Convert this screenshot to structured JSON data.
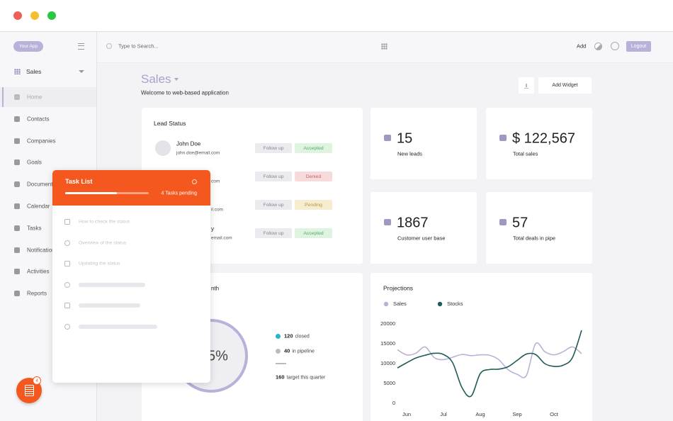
{
  "app": {
    "logo": "Your App",
    "section": "Sales"
  },
  "nav": [
    "Home",
    "Contacts",
    "Companies",
    "Goals",
    "Documents",
    "Calendar",
    "Tasks",
    "Notifications",
    "Activities",
    "Reports"
  ],
  "header": {
    "search": "Type to Search...",
    "add": "Add",
    "logout": "Logout"
  },
  "page": {
    "title": "Sales",
    "subtitle": "Welcome to web-based application",
    "add_widget": "Add Widget"
  },
  "lead_status": {
    "title": "Lead Status",
    "leads": [
      {
        "name": "John Doe",
        "email": "john.doe@email.com",
        "action": "Follow up",
        "status": "Accepted",
        "status_color": "#5aa86a",
        "status_bg": "#dff3e1"
      },
      {
        "email": "com",
        "action": "Follow up",
        "status": "Denied",
        "status_color": "#c76666",
        "status_bg": "#f7dadb"
      },
      {
        "email": "il.com",
        "action": "Follow up",
        "status": "Pending",
        "status_color": "#b9963c",
        "status_bg": "#f6ecd0"
      },
      {
        "name": "y",
        "email": "email.com",
        "action": "Follow up",
        "status": "Accepted",
        "status_color": "#5aa86a",
        "status_bg": "#dff3e1"
      }
    ]
  },
  "stats": [
    {
      "value": "15",
      "label": "New leads"
    },
    {
      "value": "$ 122,567",
      "label": "Total sales"
    },
    {
      "value": "1867",
      "label": "Customer user base"
    },
    {
      "value": "57",
      "label": "Total deals in pipe"
    }
  ],
  "target": {
    "title_fragment": "nth",
    "percent_fragment": "5%",
    "legend": [
      {
        "value": 120,
        "label": "closed",
        "color": "#25b5c7"
      },
      {
        "value": 40,
        "label": "in pipeline",
        "color": "#bbbbbb"
      },
      {
        "value": 160,
        "label": "target this quarter"
      }
    ]
  },
  "task_list": {
    "title": "Task List",
    "pending": "4 Tasks pending",
    "progress": 62,
    "badge": 4,
    "tasks": [
      "How to check the status",
      "Overview of the status",
      "Updating the status"
    ]
  },
  "chart_data": {
    "type": "line",
    "title": "Projections",
    "categories": [
      null,
      "Jun",
      null,
      null,
      null,
      "Jul",
      null,
      null,
      null,
      "Aug",
      null,
      null,
      null,
      "Sep",
      null,
      null,
      null,
      "Oct",
      null,
      null,
      null
    ],
    "series": [
      {
        "name": "Sales",
        "color": "#b9b2d6",
        "values": [
          13500,
          12200,
          12600,
          14200,
          11500,
          11000,
          11600,
          12300,
          12000,
          12200,
          12100,
          11000,
          8500,
          7300,
          7000,
          15000,
          13000,
          12200,
          13000,
          14200,
          12500
        ]
      },
      {
        "name": "Stocks",
        "color": "#1f5c55",
        "values": [
          8900,
          10200,
          11400,
          12100,
          12600,
          12300,
          10200,
          4000,
          1800,
          7500,
          8500,
          8600,
          9200,
          10800,
          12400,
          12300,
          10000,
          9300,
          9600,
          11500,
          18400
        ]
      }
    ],
    "ylim": [
      0,
      20000
    ],
    "yticks": [
      0,
      5000,
      10000,
      15000,
      20000
    ],
    "grid": false
  }
}
